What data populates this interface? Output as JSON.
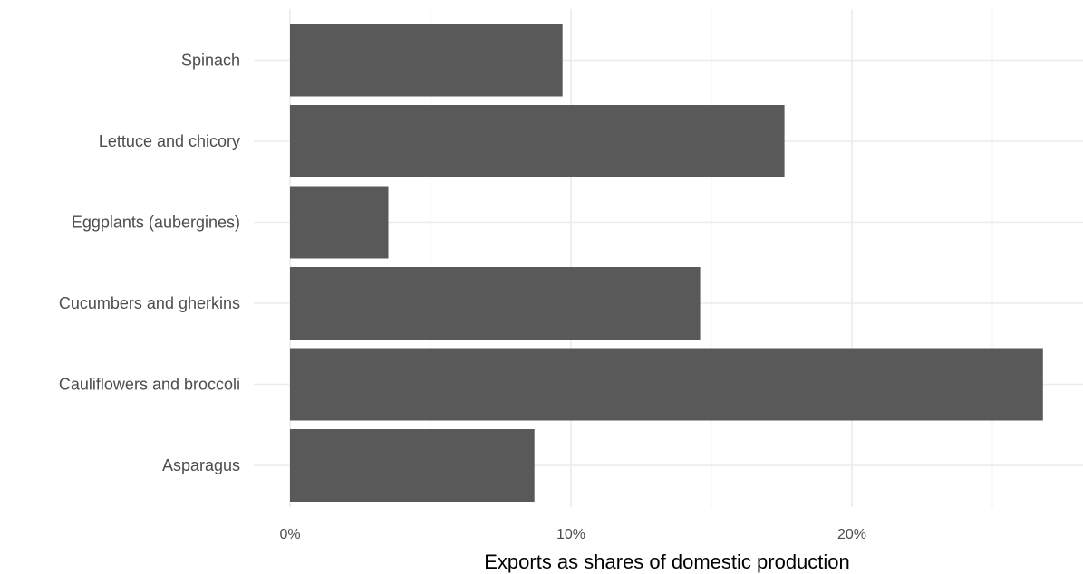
{
  "chart_data": {
    "type": "bar",
    "orientation": "horizontal",
    "categories": [
      "Asparagus",
      "Cauliflowers and broccoli",
      "Cucumbers and gherkins",
      "Eggplants (aubergines)",
      "Lettuce and chicory",
      "Spinach"
    ],
    "values": [
      0.087,
      0.268,
      0.146,
      0.035,
      0.176,
      0.097
    ],
    "xlabel": "Exports as shares of domestic production",
    "ylabel": "",
    "xlim": [
      0,
      0.28
    ],
    "xticks": [
      0,
      0.1,
      0.2
    ],
    "xtick_labels": [
      "0%",
      "10%",
      "20%"
    ],
    "grid": true,
    "legend": "none",
    "colors": {
      "bar": "#595959",
      "grid_major": "#ebebeb",
      "grid_minor": "#f3f3f3",
      "text": "#4d4d4d"
    }
  }
}
